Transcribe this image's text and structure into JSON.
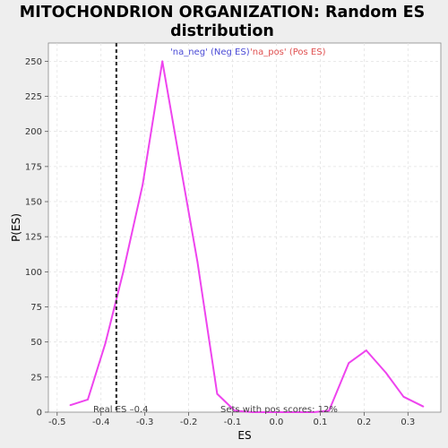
{
  "chart_data": {
    "type": "line",
    "title_line1": "MITOCHONDRION ORGANIZATION: Random ES",
    "title_line2": "distribution",
    "xlabel": "ES",
    "ylabel": "P(ES)",
    "xlim": [
      -0.52,
      0.375
    ],
    "ylim": [
      0,
      263
    ],
    "xticks": [
      -0.5,
      -0.4,
      -0.3,
      -0.2,
      -0.1,
      0.0,
      0.1,
      0.2,
      0.3
    ],
    "xtick_labels": [
      "-0.5",
      "-0.4",
      "-0.3",
      "-0.2",
      "-0.1",
      "0.0",
      "0.1",
      "0.2",
      "0.3"
    ],
    "yticks": [
      0,
      25,
      50,
      75,
      100,
      125,
      150,
      175,
      200,
      225,
      250
    ],
    "ytick_labels": [
      "0",
      "25",
      "50",
      "75",
      "100",
      "125",
      "150",
      "175",
      "200",
      "225",
      "250"
    ],
    "grid": true,
    "series": [
      {
        "color": "#ee44ee",
        "x": [
          -0.47,
          -0.43,
          -0.39,
          -0.35,
          -0.305,
          -0.26,
          -0.22,
          -0.18,
          -0.135,
          -0.095,
          -0.055,
          0.0,
          0.05,
          0.085,
          0.12,
          0.165,
          0.205,
          0.25,
          0.29,
          0.335
        ],
        "y": [
          5,
          9,
          49,
          99,
          162,
          250,
          178,
          107,
          13,
          1,
          0,
          0,
          0,
          0,
          1,
          35,
          44,
          28,
          11,
          4
        ]
      }
    ],
    "legend": {
      "position": "top-center",
      "entries": [
        {
          "label": "'na_neg' (Neg ES)",
          "color": "#4a4ad6"
        },
        {
          "label": "'na_pos' (Pos ES)",
          "color": "#e05050"
        }
      ]
    },
    "real_es": {
      "value": -0.365,
      "label": "Real ES –0.4"
    },
    "annotation": "Sets with pos scores: 12%"
  }
}
